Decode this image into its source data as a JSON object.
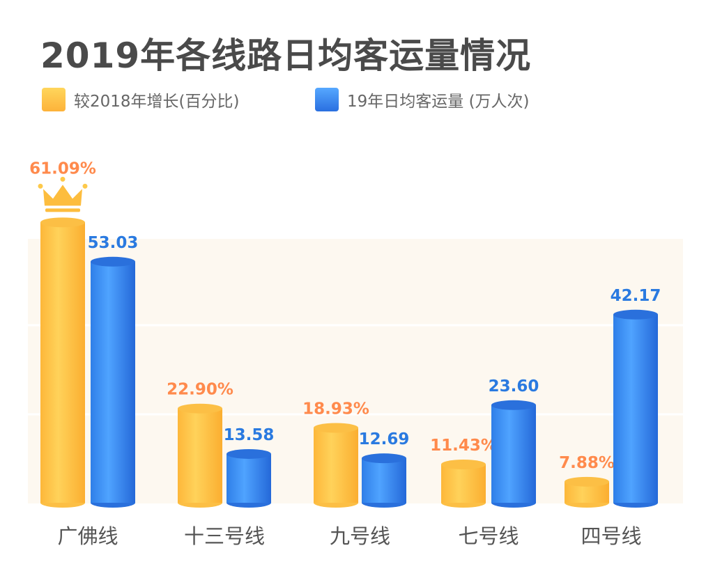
{
  "colors": {
    "growth": "#fdb63a",
    "volume": "#3a8cf0",
    "growth_label": "#ff8a4c",
    "volume_label": "#2a7ae0"
  },
  "chart_data": {
    "type": "bar",
    "title": "2019年各线路日均客运量情况",
    "categories": [
      "广佛线",
      "十三号线",
      "九号线",
      "七号线",
      "四号线"
    ],
    "series": [
      {
        "name": "较2018年增长(百分比)",
        "values": [
          61.09,
          22.9,
          18.93,
          11.43,
          7.88
        ],
        "labels": [
          "61.09%",
          "22.90%",
          "18.93%",
          "11.43%",
          "7.88%"
        ]
      },
      {
        "name": "19年日均客运量 (万人次)",
        "values": [
          53.03,
          13.58,
          12.69,
          23.6,
          42.17
        ],
        "labels": [
          "53.03",
          "13.58",
          "12.69",
          "23.60",
          "42.17"
        ]
      }
    ],
    "legend": "top-left",
    "highlight": "crown on 广佛线 growth bar"
  }
}
